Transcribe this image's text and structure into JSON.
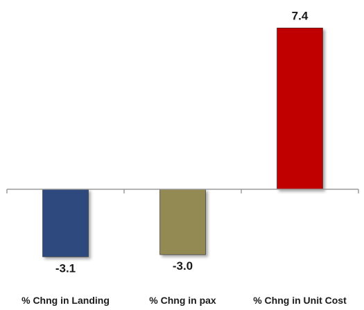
{
  "chart_data": {
    "type": "bar",
    "categories": [
      "% Chng in Landing",
      "% Chng in pax",
      "% Chng in Unit Cost"
    ],
    "values": [
      -3.1,
      -3.0,
      7.4
    ],
    "value_labels": [
      "-3.1",
      "-3.0",
      "7.4"
    ],
    "colors": [
      "#2e4a7d",
      "#938953",
      "#c00000"
    ],
    "ylim": [
      -3.6,
      8.3
    ],
    "grid": false,
    "legend": "none",
    "title": "",
    "xlabel": "",
    "ylabel": ""
  }
}
